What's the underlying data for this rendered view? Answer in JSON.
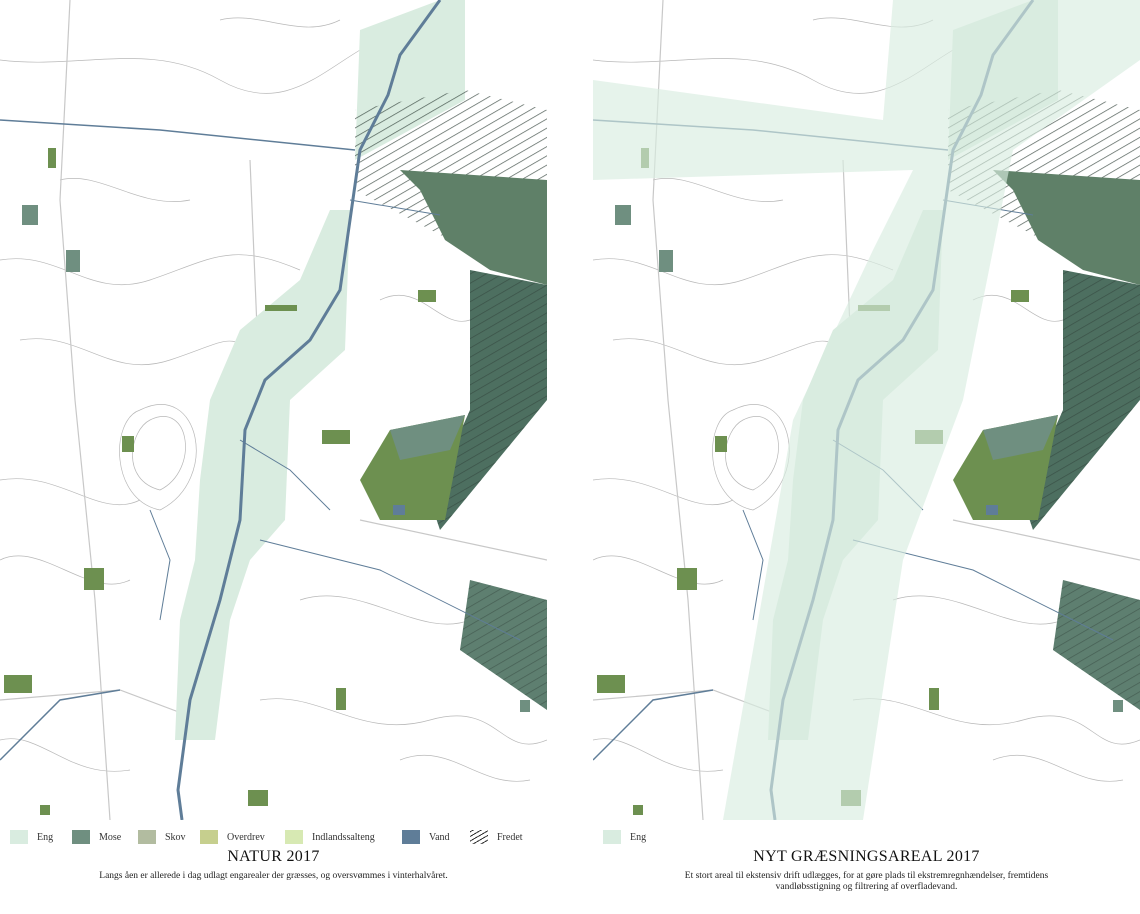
{
  "panels": [
    {
      "legend": [
        {
          "label": "Eng",
          "color": "#d9ece0"
        },
        {
          "label": "Mose",
          "color": "#6f8f80"
        },
        {
          "label": "Skov",
          "color": "#b2bca0"
        },
        {
          "label": "Overdrev",
          "color": "#c6cf8e"
        },
        {
          "label": "Indlandssalteng",
          "color": "#d7e9b3"
        },
        {
          "label": "Vand",
          "color": "#5f7d98"
        },
        {
          "label": "Fredet",
          "pattern": "hatch"
        }
      ],
      "title": "NATUR 2017",
      "caption": "Langs åen er allerede i dag udlagt engarealer der græsses, og oversvømmes i vinterhalvåret."
    },
    {
      "legend": [
        {
          "label": "Eng",
          "color": "#d9ece0"
        }
      ],
      "title": "NYT GRÆSNINGSAREAL 2017",
      "caption": "Et stort areal til ekstensiv drift udlægges, for at gøre plads til ekstremregnhændelser, fremtidens vandløbsstigning og filtrering af overfladevand."
    }
  ]
}
